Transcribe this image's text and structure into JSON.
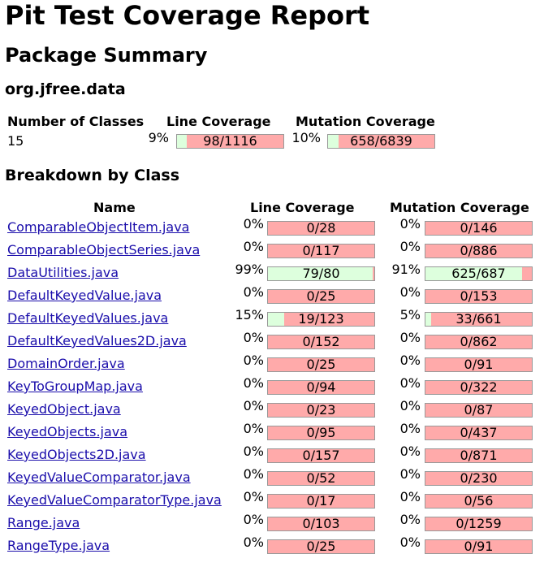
{
  "title": "Pit Test Coverage Report",
  "package_summary_heading": "Package Summary",
  "package_name": "org.jfree.data",
  "summary": {
    "headers": [
      "Number of Classes",
      "Line Coverage",
      "Mutation Coverage"
    ],
    "num_classes": "15",
    "line": {
      "pct": "9%",
      "ratio": "98/1116",
      "covered": 98,
      "total": 1116
    },
    "mutation": {
      "pct": "10%",
      "ratio": "658/6839",
      "covered": 658,
      "total": 6839
    }
  },
  "breakdown_heading": "Breakdown by Class",
  "breakdown_headers": [
    "Name",
    "Line Coverage",
    "Mutation Coverage"
  ],
  "classes": [
    {
      "name": "ComparableObjectItem.java",
      "line_pct": "0%",
      "line": "0/28",
      "line_c": 0,
      "line_t": 28,
      "mut_pct": "0%",
      "mut": "0/146",
      "mut_c": 0,
      "mut_t": 146
    },
    {
      "name": "ComparableObjectSeries.java",
      "line_pct": "0%",
      "line": "0/117",
      "line_c": 0,
      "line_t": 117,
      "mut_pct": "0%",
      "mut": "0/886",
      "mut_c": 0,
      "mut_t": 886
    },
    {
      "name": "DataUtilities.java",
      "line_pct": "99%",
      "line": "79/80",
      "line_c": 79,
      "line_t": 80,
      "mut_pct": "91%",
      "mut": "625/687",
      "mut_c": 625,
      "mut_t": 687
    },
    {
      "name": "DefaultKeyedValue.java",
      "line_pct": "0%",
      "line": "0/25",
      "line_c": 0,
      "line_t": 25,
      "mut_pct": "0%",
      "mut": "0/153",
      "mut_c": 0,
      "mut_t": 153
    },
    {
      "name": "DefaultKeyedValues.java",
      "line_pct": "15%",
      "line": "19/123",
      "line_c": 19,
      "line_t": 123,
      "mut_pct": "5%",
      "mut": "33/661",
      "mut_c": 33,
      "mut_t": 661
    },
    {
      "name": "DefaultKeyedValues2D.java",
      "line_pct": "0%",
      "line": "0/152",
      "line_c": 0,
      "line_t": 152,
      "mut_pct": "0%",
      "mut": "0/862",
      "mut_c": 0,
      "mut_t": 862
    },
    {
      "name": "DomainOrder.java",
      "line_pct": "0%",
      "line": "0/25",
      "line_c": 0,
      "line_t": 25,
      "mut_pct": "0%",
      "mut": "0/91",
      "mut_c": 0,
      "mut_t": 91
    },
    {
      "name": "KeyToGroupMap.java",
      "line_pct": "0%",
      "line": "0/94",
      "line_c": 0,
      "line_t": 94,
      "mut_pct": "0%",
      "mut": "0/322",
      "mut_c": 0,
      "mut_t": 322
    },
    {
      "name": "KeyedObject.java",
      "line_pct": "0%",
      "line": "0/23",
      "line_c": 0,
      "line_t": 23,
      "mut_pct": "0%",
      "mut": "0/87",
      "mut_c": 0,
      "mut_t": 87
    },
    {
      "name": "KeyedObjects.java",
      "line_pct": "0%",
      "line": "0/95",
      "line_c": 0,
      "line_t": 95,
      "mut_pct": "0%",
      "mut": "0/437",
      "mut_c": 0,
      "mut_t": 437
    },
    {
      "name": "KeyedObjects2D.java",
      "line_pct": "0%",
      "line": "0/157",
      "line_c": 0,
      "line_t": 157,
      "mut_pct": "0%",
      "mut": "0/871",
      "mut_c": 0,
      "mut_t": 871
    },
    {
      "name": "KeyedValueComparator.java",
      "line_pct": "0%",
      "line": "0/52",
      "line_c": 0,
      "line_t": 52,
      "mut_pct": "0%",
      "mut": "0/230",
      "mut_c": 0,
      "mut_t": 230
    },
    {
      "name": "KeyedValueComparatorType.java",
      "line_pct": "0%",
      "line": "0/17",
      "line_c": 0,
      "line_t": 17,
      "mut_pct": "0%",
      "mut": "0/56",
      "mut_c": 0,
      "mut_t": 56
    },
    {
      "name": "Range.java",
      "line_pct": "0%",
      "line": "0/103",
      "line_c": 0,
      "line_t": 103,
      "mut_pct": "0%",
      "mut": "0/1259",
      "mut_c": 0,
      "mut_t": 1259
    },
    {
      "name": "RangeType.java",
      "line_pct": "0%",
      "line": "0/25",
      "line_c": 0,
      "line_t": 25,
      "mut_pct": "0%",
      "mut": "0/91",
      "mut_c": 0,
      "mut_t": 91
    }
  ],
  "colors": {
    "covered": "#ddffdd",
    "uncovered": "#ffaaaa",
    "link": "#1a0dab"
  }
}
